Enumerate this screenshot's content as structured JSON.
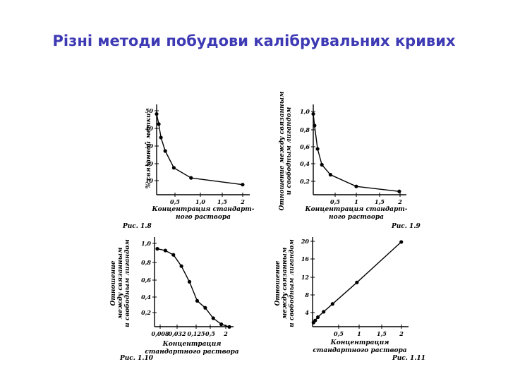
{
  "slide": {
    "title": "Різні методи побудови калібрувальних кривих"
  },
  "chart_data": [
    {
      "type": "line",
      "figure_label": "Рис. 1.8",
      "ylabel": "% связанной метки",
      "xlabel": [
        "Концентрация стандарт-",
        "ного раствора"
      ],
      "x_ticks": [
        "0,5",
        "1,0",
        "1,5",
        "2"
      ],
      "y_ticks": [
        "10",
        "20",
        "30",
        "40",
        "50"
      ],
      "xlim": [
        0,
        2.1
      ],
      "ylim": [
        0,
        52
      ],
      "x": [
        0,
        0.05,
        0.1,
        0.2,
        0.4,
        0.8,
        2.0
      ],
      "y": [
        48,
        42,
        34,
        26,
        16,
        10,
        6
      ]
    },
    {
      "type": "line",
      "figure_label": "Рис. 1.9",
      "ylabel": [
        "Отношение между связанным",
        "и свободным лигандом"
      ],
      "xlabel": [
        "Концентрация стандарт-",
        "ного раствора"
      ],
      "x_ticks": [
        "0,5",
        "1",
        "1,5",
        "2"
      ],
      "y_ticks": [
        "0,2",
        "0,4",
        "0,6",
        "0,8",
        "1,0"
      ],
      "xlim": [
        0,
        2.1
      ],
      "ylim": [
        0,
        1.05
      ],
      "x": [
        0,
        0.03,
        0.1,
        0.2,
        0.4,
        1.0,
        2.0
      ],
      "y": [
        0.97,
        0.83,
        0.55,
        0.36,
        0.24,
        0.1,
        0.04
      ]
    },
    {
      "type": "line",
      "figure_label": "Рис. 1.10",
      "ylabel": [
        "Отношение",
        "между связанным",
        "и свободным лигандом"
      ],
      "xlabel": [
        "Концентрация",
        "стандартного раствора"
      ],
      "x_ticks": [
        "0,008",
        "0,032",
        "0,125",
        "0,5",
        "2"
      ],
      "y_ticks": [
        "0,2",
        "0,4",
        "0,6",
        "0,8",
        "1,0"
      ],
      "xscale": "log",
      "x": [
        0.004,
        0.008,
        0.016,
        0.032,
        0.064,
        0.125,
        0.25,
        0.5,
        1.0,
        2.0
      ],
      "y": [
        0.93,
        0.91,
        0.86,
        0.73,
        0.55,
        0.33,
        0.25,
        0.13,
        0.06,
        0.03
      ]
    },
    {
      "type": "line",
      "figure_label": "Рис. 1.11",
      "ylabel": [
        "Отношение",
        "между связанным",
        "и свободным лигандом"
      ],
      "xlabel": [
        "Концентрация",
        "стандартного раствора"
      ],
      "x_ticks": [
        "0,5",
        "1",
        "1,5",
        "2"
      ],
      "y_ticks": [
        "4",
        "8",
        "12",
        "16",
        "20"
      ],
      "xlim": [
        0,
        2.1
      ],
      "ylim": [
        0,
        21
      ],
      "x": [
        0.02,
        0.06,
        0.12,
        0.25,
        0.45,
        1.0,
        2.0
      ],
      "y": [
        1.0,
        1.5,
        2.3,
        3.6,
        5.5,
        10.7,
        20.5
      ]
    }
  ]
}
